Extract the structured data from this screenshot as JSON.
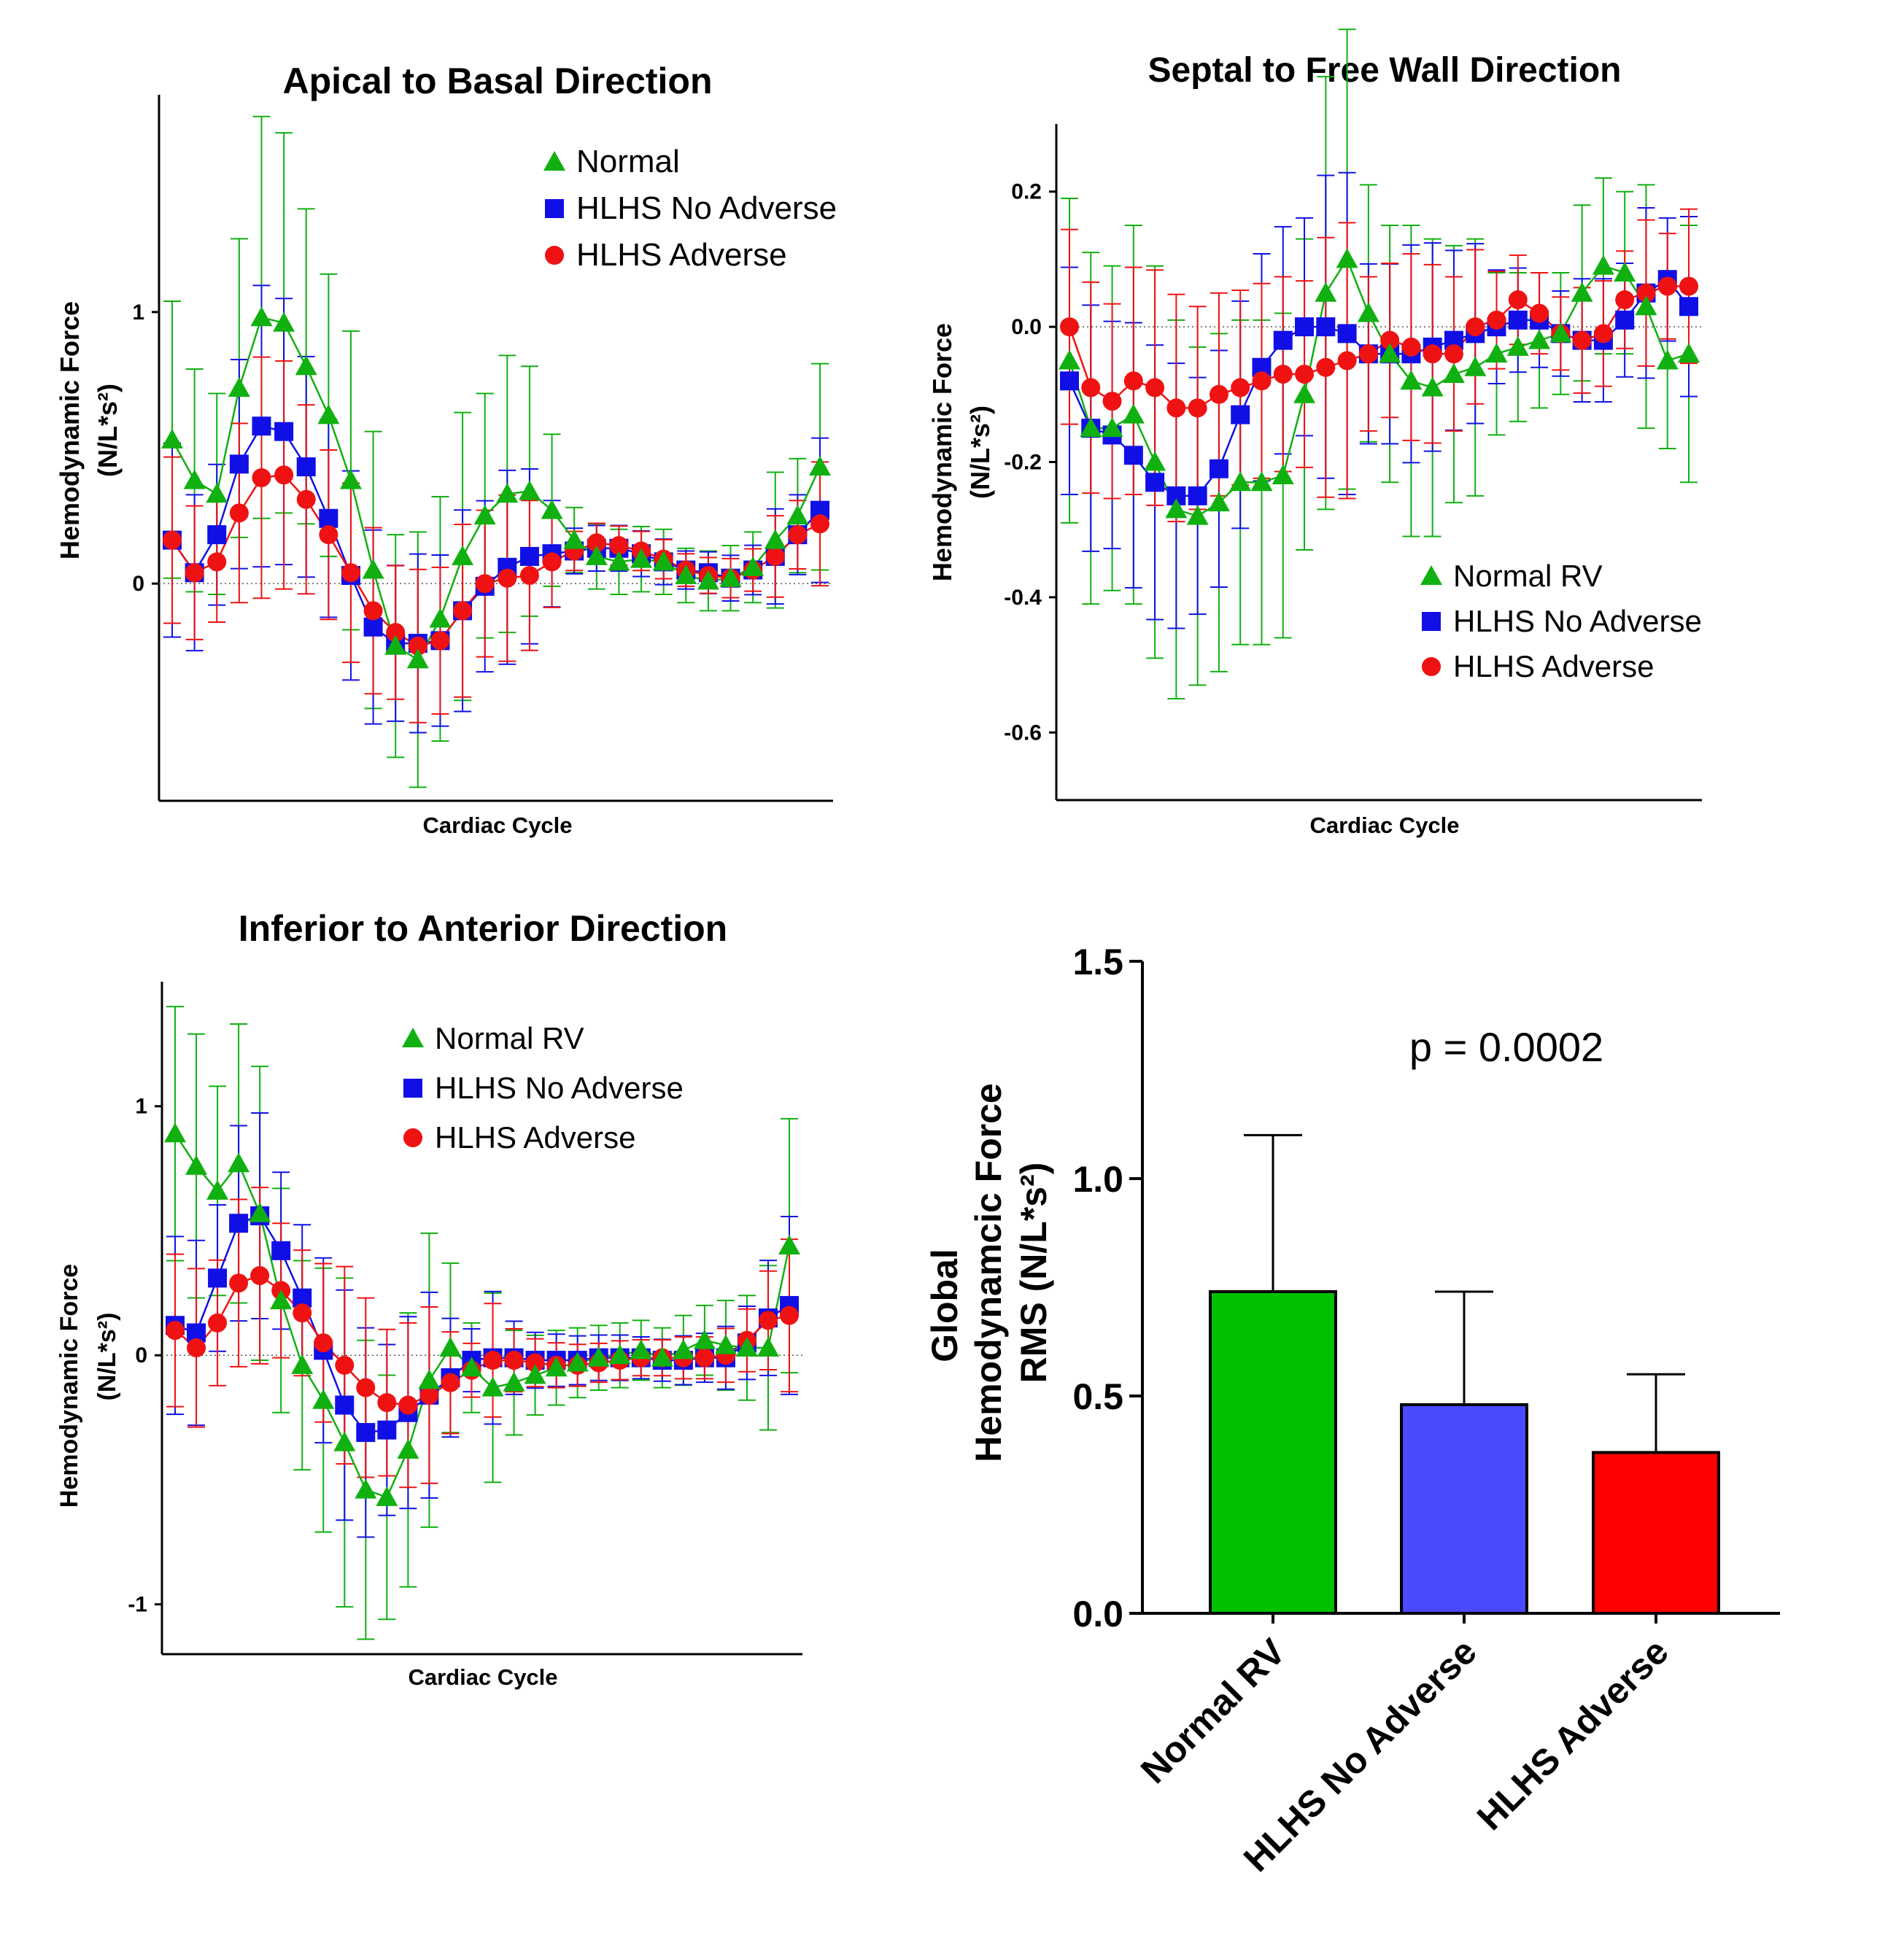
{
  "colors": {
    "normal": "#11b011",
    "no_adverse": "#1010e6",
    "adverse": "#ef1212",
    "axis": "#000000"
  },
  "chart_data": [
    {
      "type": "line",
      "title": "Apical to Basal Direction",
      "xlabel": "Cardiac Cycle",
      "ylabel": "Hemodynamic  Force",
      "ylabel_units": "(N/L*s²)",
      "ylim": [
        -0.8,
        1.8
      ],
      "yticks": [
        0,
        1
      ],
      "ytick_labels": [
        "0",
        "1"
      ],
      "legend_position": "top-right",
      "x": [
        1,
        2,
        3,
        4,
        5,
        6,
        7,
        8,
        9,
        10,
        11,
        12,
        13,
        14,
        15,
        16,
        17,
        18,
        19,
        20,
        21,
        22,
        23,
        24,
        25,
        26,
        27,
        28,
        29,
        30
      ],
      "series": [
        {
          "name": "Normal",
          "marker": "triangle",
          "color": "#11b011",
          "values": [
            0.53,
            0.38,
            0.33,
            0.72,
            0.98,
            0.96,
            0.8,
            0.62,
            0.38,
            0.05,
            -0.23,
            -0.28,
            -0.13,
            0.1,
            0.25,
            0.33,
            0.34,
            0.27,
            0.16,
            0.1,
            0.08,
            0.09,
            0.08,
            0.03,
            0.01,
            0.02,
            0.06,
            0.16,
            0.25,
            0.43
          ],
          "errors": [
            0.51,
            0.41,
            0.37,
            0.55,
            0.74,
            0.7,
            0.58,
            0.52,
            0.55,
            0.51,
            0.41,
            0.47,
            0.45,
            0.53,
            0.45,
            0.51,
            0.46,
            0.28,
            0.12,
            0.12,
            0.12,
            0.12,
            0.12,
            0.1,
            0.11,
            0.12,
            0.13,
            0.25,
            0.21,
            0.38
          ]
        },
        {
          "name": "HLHS No Adverse",
          "marker": "square",
          "color": "#1010e6",
          "values": [
            0.16,
            0.04,
            0.18,
            0.44,
            0.58,
            0.56,
            0.43,
            0.24,
            0.03,
            -0.16,
            -0.22,
            -0.22,
            -0.21,
            -0.1,
            -0.01,
            0.06,
            0.1,
            0.11,
            0.12,
            0.13,
            0.13,
            0.11,
            0.08,
            0.05,
            0.04,
            0.02,
            0.05,
            0.1,
            0.18,
            0.27
          ]
        },
        {
          "name": "HLHS Adverse",
          "marker": "circle",
          "color": "#ef1212",
          "values": [
            0.16,
            0.04,
            0.08,
            0.26,
            0.39,
            0.4,
            0.31,
            0.18,
            0.04,
            -0.1,
            -0.18,
            -0.23,
            -0.21,
            -0.1,
            0.0,
            0.02,
            0.03,
            0.08,
            0.12,
            0.15,
            0.14,
            0.12,
            0.09,
            0.05,
            0.03,
            0.02,
            0.05,
            0.1,
            0.18,
            0.22
          ]
        }
      ]
    },
    {
      "type": "line",
      "title": "Septal to Free  Wall Direction",
      "xlabel": "Cardiac Cycle",
      "ylabel": "Hemodynamic  Force",
      "ylabel_units": "(N/L*s²)",
      "ylim": [
        -0.7,
        0.3
      ],
      "yticks": [
        0.2,
        0,
        -0.2,
        -0.4,
        -0.6
      ],
      "ytick_labels": [
        "0.2",
        "0.0",
        "-0.2",
        "-0.4",
        "-0.6"
      ],
      "legend_position": "bottom-right",
      "x": [
        1,
        2,
        3,
        4,
        5,
        6,
        7,
        8,
        9,
        10,
        11,
        12,
        13,
        14,
        15,
        16,
        17,
        18,
        19,
        20,
        21,
        22,
        23,
        24,
        25,
        26,
        27,
        28,
        29,
        30
      ],
      "series": [
        {
          "name": "Normal RV",
          "marker": "triangle",
          "color": "#11b011",
          "values": [
            -0.05,
            -0.15,
            -0.15,
            -0.13,
            -0.2,
            -0.27,
            -0.28,
            -0.26,
            -0.23,
            -0.23,
            -0.22,
            -0.1,
            0.05,
            0.1,
            0.02,
            -0.04,
            -0.08,
            -0.09,
            -0.07,
            -0.06,
            -0.04,
            -0.03,
            -0.02,
            -0.01,
            0.05,
            0.09,
            0.08,
            0.03,
            -0.05,
            -0.04
          ],
          "errors": [
            0.24,
            0.26,
            0.24,
            0.28,
            0.29,
            0.28,
            0.25,
            0.25,
            0.24,
            0.24,
            0.24,
            0.23,
            0.32,
            0.34,
            0.19,
            0.19,
            0.23,
            0.22,
            0.19,
            0.19,
            0.12,
            0.11,
            0.1,
            0.09,
            0.13,
            0.13,
            0.12,
            0.18,
            0.13,
            0.19
          ]
        },
        {
          "name": "HLHS No Adverse",
          "marker": "square",
          "color": "#1010e6",
          "values": [
            -0.08,
            -0.15,
            -0.16,
            -0.19,
            -0.23,
            -0.25,
            -0.25,
            -0.21,
            -0.13,
            -0.06,
            -0.02,
            0.0,
            0.0,
            -0.01,
            -0.04,
            -0.04,
            -0.04,
            -0.03,
            -0.02,
            -0.01,
            0.0,
            0.01,
            0.01,
            -0.01,
            -0.02,
            -0.02,
            0.01,
            0.05,
            0.07,
            0.03
          ]
        },
        {
          "name": "HLHS Adverse",
          "marker": "circle",
          "color": "#ef1212",
          "values": [
            0.0,
            -0.09,
            -0.11,
            -0.08,
            -0.09,
            -0.12,
            -0.12,
            -0.1,
            -0.09,
            -0.08,
            -0.07,
            -0.07,
            -0.06,
            -0.05,
            -0.04,
            -0.02,
            -0.03,
            -0.04,
            -0.04,
            0.0,
            0.01,
            0.04,
            0.02,
            -0.01,
            -0.02,
            -0.01,
            0.04,
            0.05,
            0.06,
            0.06
          ]
        }
      ]
    },
    {
      "type": "line",
      "title": "Inferior to Anterior Direction",
      "xlabel": "Cardiac Cycle",
      "ylabel": "Hemodynamic  Force",
      "ylabel_units": "(N/L*s²)",
      "ylim": [
        -1.2,
        1.5
      ],
      "yticks": [
        1,
        0,
        -1
      ],
      "ytick_labels": [
        "1",
        "0",
        "-1"
      ],
      "legend_position": "top-center",
      "x": [
        1,
        2,
        3,
        4,
        5,
        6,
        7,
        8,
        9,
        10,
        11,
        12,
        13,
        14,
        15,
        16,
        17,
        18,
        19,
        20,
        21,
        22,
        23,
        24,
        25,
        26,
        27,
        28,
        29,
        30
      ],
      "series": [
        {
          "name": "Normal RV",
          "marker": "triangle",
          "color": "#11b011",
          "values": [
            0.89,
            0.76,
            0.66,
            0.77,
            0.57,
            0.22,
            -0.04,
            -0.18,
            -0.35,
            -0.54,
            -0.57,
            -0.38,
            -0.1,
            0.03,
            -0.05,
            -0.13,
            -0.11,
            -0.08,
            -0.05,
            -0.03,
            -0.01,
            0.0,
            0.02,
            -0.01,
            0.02,
            0.06,
            0.04,
            0.03,
            0.03,
            0.44
          ],
          "errors": [
            0.51,
            0.53,
            0.42,
            0.56,
            0.59,
            0.45,
            0.42,
            0.53,
            0.66,
            0.6,
            0.49,
            0.55,
            0.59,
            0.34,
            0.18,
            0.38,
            0.21,
            0.16,
            0.15,
            0.14,
            0.13,
            0.13,
            0.12,
            0.12,
            0.14,
            0.14,
            0.18,
            0.21,
            0.33,
            0.51
          ]
        },
        {
          "name": "HLHS No Adverse",
          "marker": "square",
          "color": "#1010e6",
          "values": [
            0.12,
            0.09,
            0.31,
            0.53,
            0.56,
            0.42,
            0.23,
            0.02,
            -0.2,
            -0.31,
            -0.3,
            -0.23,
            -0.16,
            -0.09,
            -0.02,
            -0.01,
            -0.01,
            -0.02,
            -0.02,
            -0.02,
            -0.01,
            -0.01,
            -0.01,
            -0.02,
            -0.02,
            -0.01,
            -0.01,
            0.05,
            0.15,
            0.2
          ]
        },
        {
          "name": "HLHS Adverse",
          "marker": "circle",
          "color": "#ef1212",
          "values": [
            0.1,
            0.03,
            0.13,
            0.29,
            0.32,
            0.26,
            0.17,
            0.05,
            -0.04,
            -0.13,
            -0.19,
            -0.2,
            -0.16,
            -0.11,
            -0.06,
            -0.02,
            -0.02,
            -0.03,
            -0.04,
            -0.04,
            -0.03,
            -0.02,
            -0.01,
            -0.01,
            -0.01,
            -0.01,
            0.0,
            0.06,
            0.14,
            0.16
          ]
        }
      ]
    },
    {
      "type": "bar",
      "ylabel_line1": "Global",
      "ylabel_line2": "Hemodynamcic  Force",
      "ylabel_line3": "RMS (N/L*s²)",
      "ylim": [
        0,
        1.5
      ],
      "yticks": [
        0,
        0.5,
        1.0,
        1.5
      ],
      "ytick_labels": [
        "0.0",
        "0.5",
        "1.0",
        "1.5"
      ],
      "categories": [
        "Normal RV",
        "HLHS No Adverse",
        "HLHS Adverse"
      ],
      "values": [
        0.74,
        0.48,
        0.37
      ],
      "errors": [
        0.36,
        0.26,
        0.18
      ],
      "colors": [
        "#00c000",
        "#4a4aff",
        "#ff0000"
      ],
      "annotation": "p = 0.0002"
    }
  ]
}
